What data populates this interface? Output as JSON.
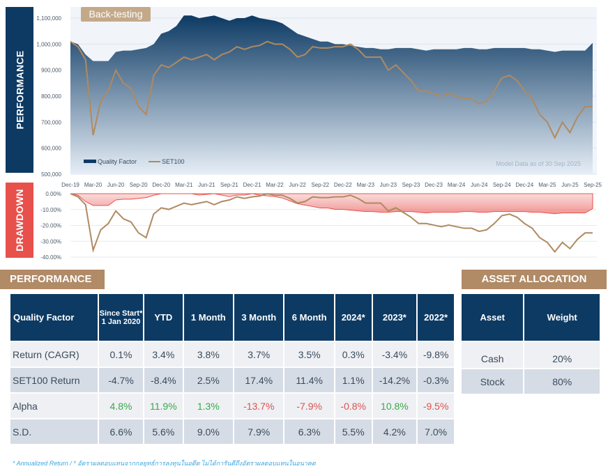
{
  "side_labels": {
    "performance": "PERFORMANCE",
    "drawdown": "DRAWDOWN"
  },
  "badge": "Back-testing",
  "chart_data": [
    {
      "type": "area",
      "title": "Performance",
      "note": "Model Data as of 30 Sep 2025",
      "x_ticks": [
        "Dec-19",
        "Mar-20",
        "Jun-20",
        "Sep-20",
        "Dec-20",
        "Mar-21",
        "Jun-21",
        "Sep-21",
        "Dec-21",
        "Mar-22",
        "Jun-22",
        "Sep-22",
        "Dec-22",
        "Mar-23",
        "Jun-23",
        "Sep-23",
        "Dec-23",
        "Mar-24",
        "Jun-24",
        "Sep-24",
        "Dec-24",
        "Mar-25",
        "Jun-25",
        "Sep-25"
      ],
      "y_ticks": [
        "1,100,000",
        "1,000,000",
        "900,000",
        "800,000",
        "700,000",
        "600,000",
        "500,000"
      ],
      "ylim": [
        500000,
        1100000
      ],
      "x_period": "monthly Dec-19 to Sep-25",
      "legend": [
        "Quality Factor",
        "SET100"
      ],
      "legend_position": "bottom-left",
      "series": [
        {
          "name": "Quality Factor",
          "color": "#0d3a63",
          "values": [
            1010,
            1000,
            960,
            935,
            935,
            935,
            970,
            975,
            975,
            980,
            985,
            1000,
            1040,
            1050,
            1070,
            1110,
            1110,
            1100,
            1105,
            1110,
            1100,
            1090,
            1100,
            1100,
            1110,
            1100,
            1095,
            1090,
            1080,
            1060,
            1040,
            1030,
            1020,
            1010,
            1010,
            1000,
            1000,
            995,
            990,
            985,
            985,
            980,
            980,
            985,
            985,
            985,
            980,
            975,
            980,
            980,
            980,
            980,
            985,
            985,
            980,
            980,
            985,
            985,
            985,
            985,
            985,
            980,
            980,
            975,
            970,
            975,
            975,
            975,
            975,
            1005
          ]
        },
        {
          "name": "SET100",
          "color": "#b08a60",
          "values": [
            1010,
            990,
            940,
            650,
            780,
            820,
            900,
            850,
            830,
            760,
            730,
            880,
            920,
            910,
            930,
            950,
            940,
            950,
            960,
            940,
            960,
            970,
            990,
            980,
            990,
            995,
            1010,
            1000,
            1000,
            980,
            950,
            960,
            990,
            985,
            985,
            990,
            990,
            1000,
            980,
            950,
            950,
            950,
            900,
            920,
            890,
            860,
            820,
            820,
            810,
            800,
            810,
            800,
            790,
            790,
            770,
            780,
            820,
            870,
            880,
            860,
            820,
            790,
            730,
            700,
            640,
            700,
            660,
            720,
            760,
            760
          ]
        }
      ],
      "value_unit": "thousands"
    },
    {
      "type": "area",
      "title": "Drawdown",
      "y_ticks": [
        "0.00%",
        "-10.00%",
        "-20.00%",
        "-30.00%",
        "-40.00%"
      ],
      "ylim": [
        -40,
        0
      ],
      "note": "drawdown computed from performance series"
    }
  ],
  "performance": {
    "title": "PERFORMANCE",
    "headers": [
      "Quality Factor",
      "Since Start*",
      "1 Jan 2020",
      "YTD",
      "1 Month",
      "3 Month",
      "6 Month",
      "2024*",
      "2023*",
      "2022*"
    ],
    "rows": [
      {
        "label": "Return (CAGR)",
        "values": [
          "0.1%",
          "3.4%",
          "3.8%",
          "3.7%",
          "3.5%",
          "0.3%",
          "-3.4%",
          "-9.8%"
        ]
      },
      {
        "label": "SET100 Return",
        "values": [
          "-4.7%",
          "-8.4%",
          "2.5%",
          "17.4%",
          "11.4%",
          "1.1%",
          "-14.2%",
          "-0.3%"
        ]
      },
      {
        "label": "Alpha",
        "values": [
          "4.8%",
          "11.9%",
          "1.3%",
          "-13.7%",
          "-7.9%",
          "-0.8%",
          "10.8%",
          "-9.5%"
        ]
      },
      {
        "label": "S.D.",
        "values": [
          "6.6%",
          "5.6%",
          "9.0%",
          "7.9%",
          "6.3%",
          "5.5%",
          "4.2%",
          "7.0%"
        ]
      }
    ]
  },
  "allocation": {
    "title": "ASSET ALLOCATION",
    "headers": [
      "Asset",
      "Weight"
    ],
    "rows": [
      {
        "asset": "Cash",
        "weight": "20%"
      },
      {
        "asset": "Stock",
        "weight": "80%"
      }
    ]
  },
  "footnote": "* Annualized Return / * อัตราผลตอบแทนจากกลยุทธ์การลงทุนในอดีต ไม่ได้การันตีถึงอัตราผลตอบแทนในอนาคต",
  "colors": {
    "navy": "#0d3a63",
    "red": "#e8504c",
    "tan": "#b18a66",
    "positive": "#3aa84a",
    "negative": "#e0504c"
  }
}
